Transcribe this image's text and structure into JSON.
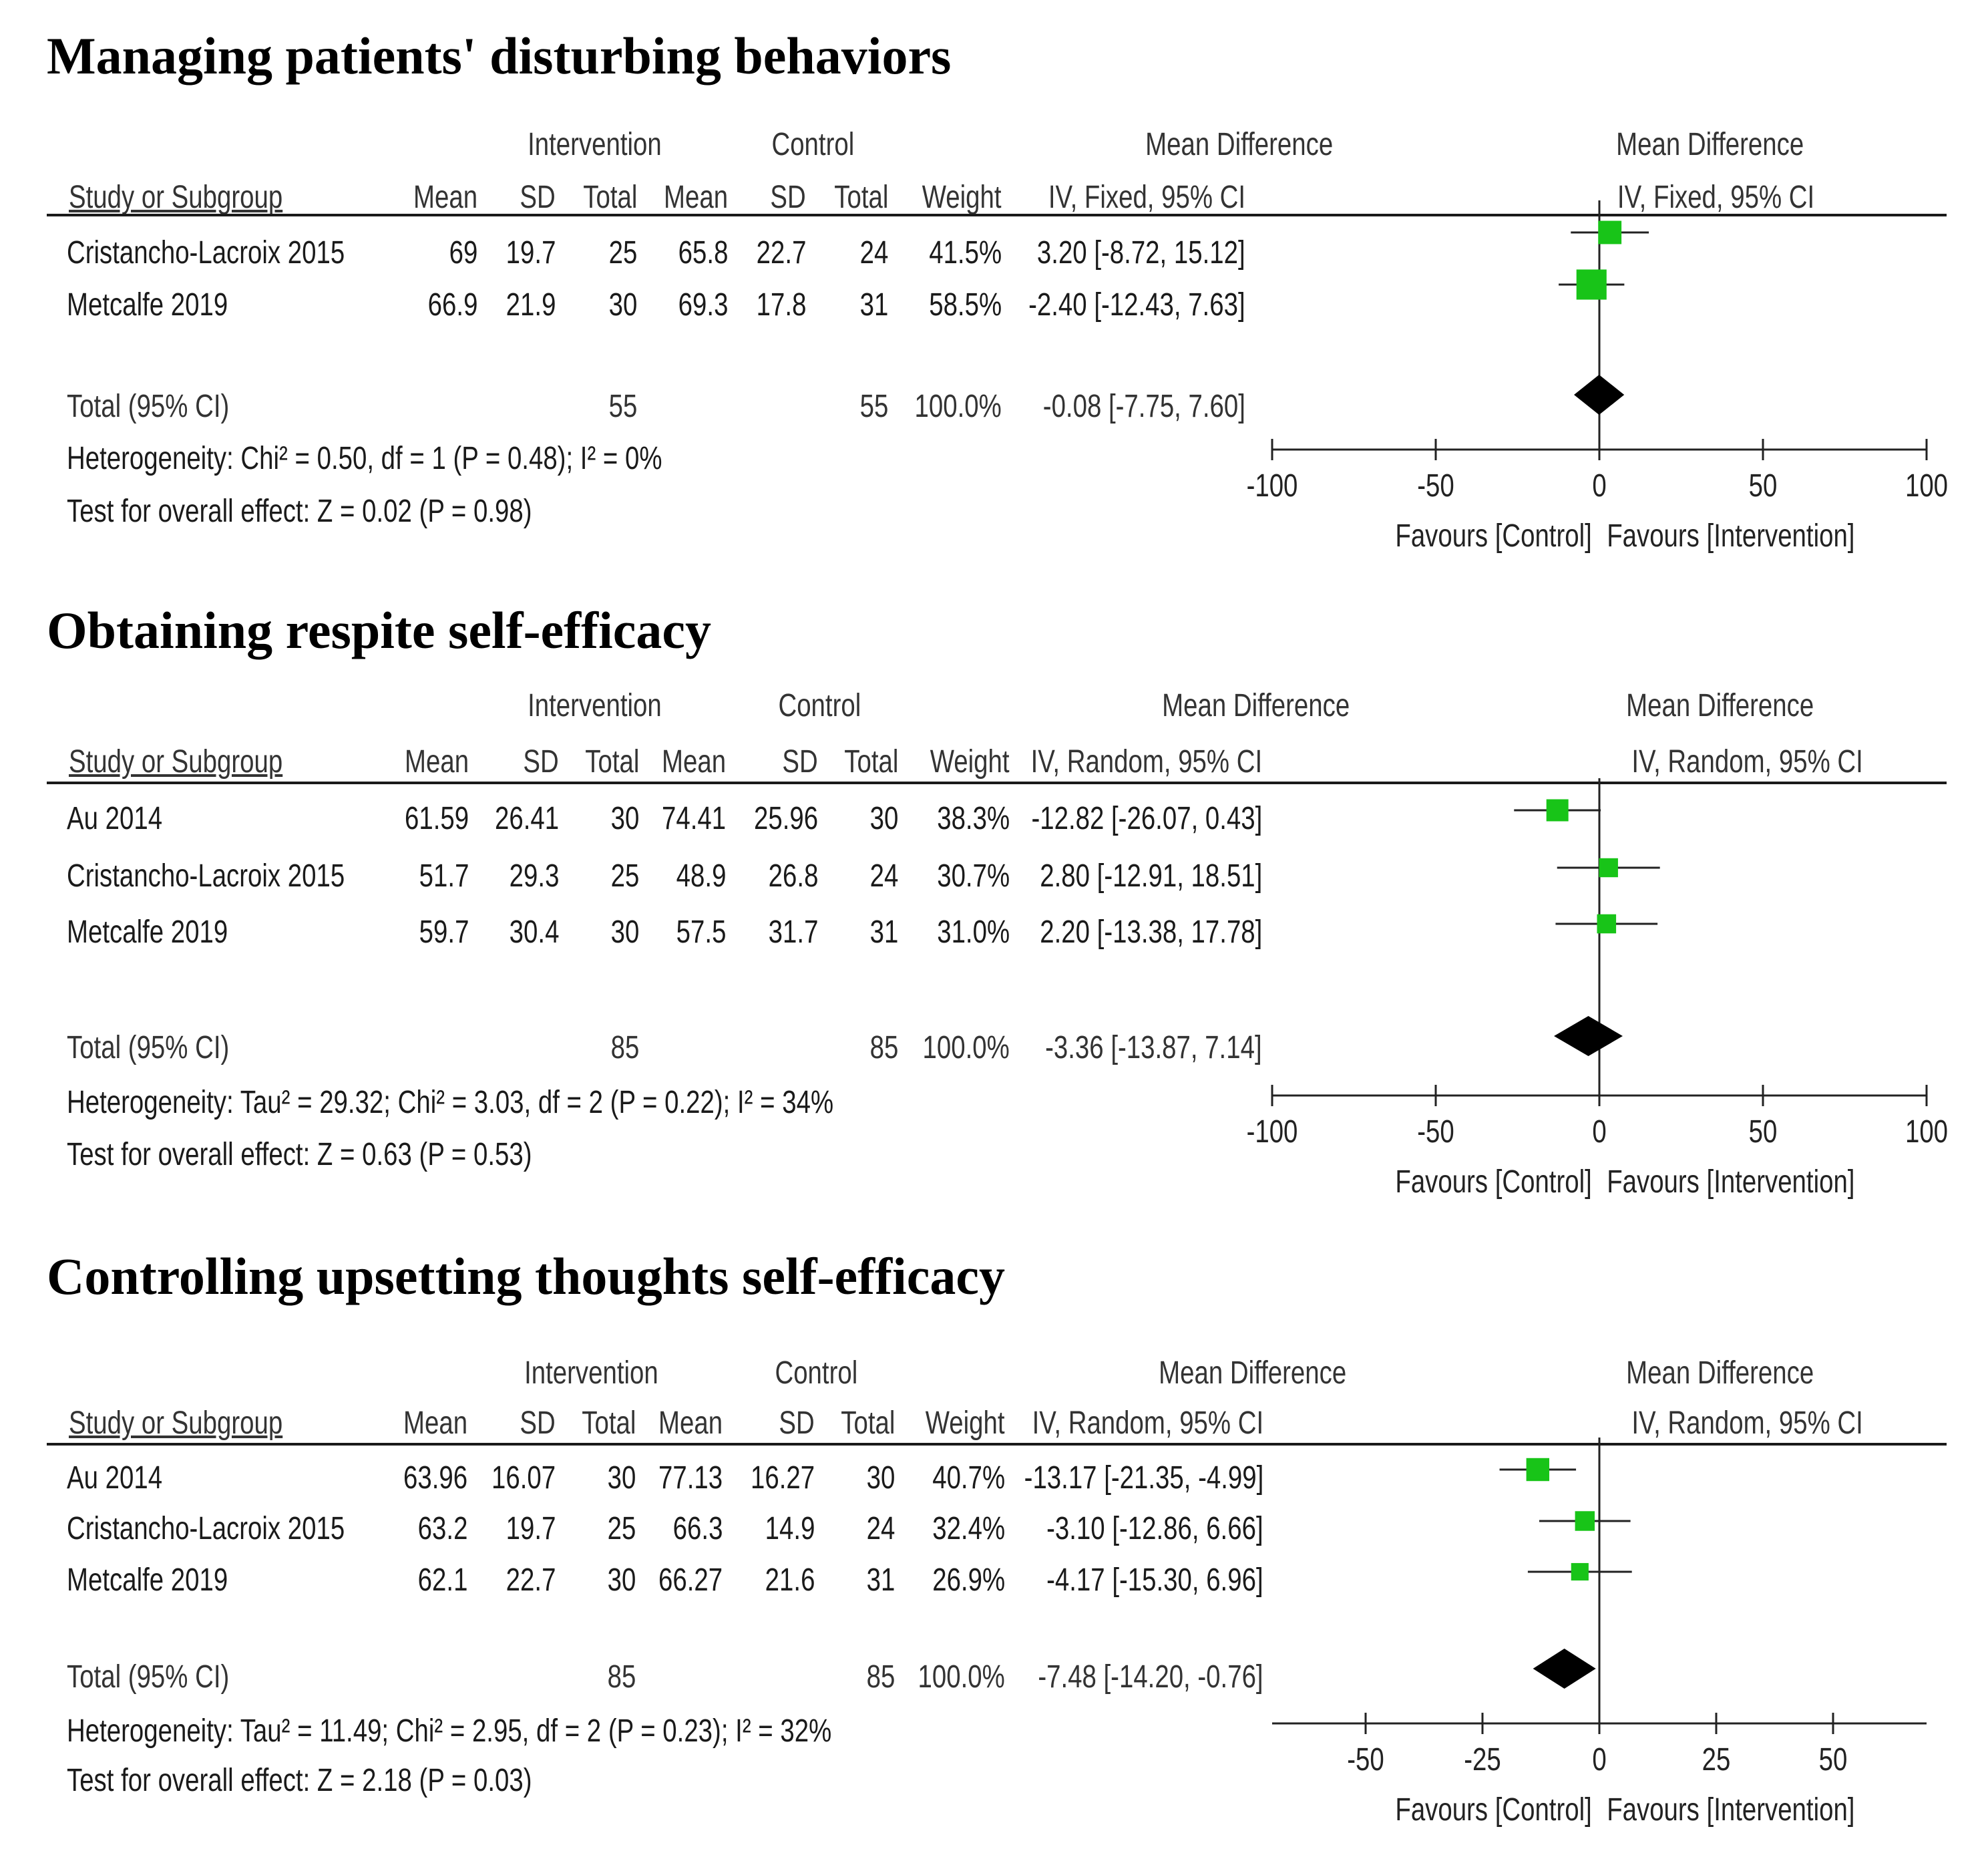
{
  "headers": {
    "intervention": "Intervention",
    "control": "Control",
    "mean_difference": "Mean Difference",
    "study": "Study or Subgroup",
    "mean": "Mean",
    "sd": "SD",
    "total": "Total",
    "weight": "Weight"
  },
  "chart_data": [
    {
      "type": "forest",
      "title": "Managing patients' disturbing behaviors",
      "method_label": "IV, Fixed, 95% CI",
      "studies": [
        {
          "name": "Cristancho-Lacroix 2015",
          "int_mean": "69",
          "int_sd": "19.7",
          "int_total": "25",
          "ctl_mean": "65.8",
          "ctl_sd": "22.7",
          "ctl_total": "24",
          "weight": "41.5%",
          "ci_text": "3.20 [-8.72, 15.12]",
          "md": 3.2,
          "lower": -8.72,
          "upper": 15.12,
          "weight_pct": 41.5
        },
        {
          "name": "Metcalfe 2019",
          "int_mean": "66.9",
          "int_sd": "21.9",
          "int_total": "30",
          "ctl_mean": "69.3",
          "ctl_sd": "17.8",
          "ctl_total": "31",
          "weight": "58.5%",
          "ci_text": "-2.40 [-12.43, 7.63]",
          "md": -2.4,
          "lower": -12.43,
          "upper": 7.63,
          "weight_pct": 58.5
        }
      ],
      "total": {
        "label": "Total (95% CI)",
        "int_total": "55",
        "ctl_total": "55",
        "weight": "100.0%",
        "ci_text": "-0.08 [-7.75, 7.60]",
        "md": -0.08,
        "lower": -7.75,
        "upper": 7.6
      },
      "heterogeneity": "Heterogeneity: Chi² = 0.50, df = 1 (P = 0.48); I² = 0%",
      "overall_effect": "Test for overall effect: Z = 0.02 (P = 0.98)",
      "xlim": [
        -100,
        100
      ],
      "ticks": [
        -100,
        -50,
        0,
        50,
        100
      ],
      "favours_left": "Favours [Control]",
      "favours_right": "Favours [Intervention]",
      "marker_color": "#18c418"
    },
    {
      "type": "forest",
      "title": "Obtaining respite self-efficacy",
      "method_label": "IV, Random, 95% CI",
      "studies": [
        {
          "name": "Au 2014",
          "int_mean": "61.59",
          "int_sd": "26.41",
          "int_total": "30",
          "ctl_mean": "74.41",
          "ctl_sd": "25.96",
          "ctl_total": "30",
          "weight": "38.3%",
          "ci_text": "-12.82 [-26.07, 0.43]",
          "md": -12.82,
          "lower": -26.07,
          "upper": 0.43,
          "weight_pct": 38.3
        },
        {
          "name": "Cristancho-Lacroix 2015",
          "int_mean": "51.7",
          "int_sd": "29.3",
          "int_total": "25",
          "ctl_mean": "48.9",
          "ctl_sd": "26.8",
          "ctl_total": "24",
          "weight": "30.7%",
          "ci_text": "2.80 [-12.91, 18.51]",
          "md": 2.8,
          "lower": -12.91,
          "upper": 18.51,
          "weight_pct": 30.7
        },
        {
          "name": "Metcalfe 2019",
          "int_mean": "59.7",
          "int_sd": "30.4",
          "int_total": "30",
          "ctl_mean": "57.5",
          "ctl_sd": "31.7",
          "ctl_total": "31",
          "weight": "31.0%",
          "ci_text": "2.20 [-13.38, 17.78]",
          "md": 2.2,
          "lower": -13.38,
          "upper": 17.78,
          "weight_pct": 31.0
        }
      ],
      "total": {
        "label": "Total (95% CI)",
        "int_total": "85",
        "ctl_total": "85",
        "weight": "100.0%",
        "ci_text": "-3.36 [-13.87, 7.14]",
        "md": -3.36,
        "lower": -13.87,
        "upper": 7.14
      },
      "heterogeneity": "Heterogeneity: Tau² = 29.32; Chi² = 3.03, df = 2 (P = 0.22); I² = 34%",
      "overall_effect": "Test for overall effect: Z = 0.63 (P = 0.53)",
      "xlim": [
        -100,
        100
      ],
      "ticks": [
        -100,
        -50,
        0,
        50,
        100
      ],
      "favours_left": "Favours [Control]",
      "favours_right": "Favours [Intervention]",
      "marker_color": "#18c418"
    },
    {
      "type": "forest",
      "title": "Controlling upsetting thoughts self-efficacy",
      "method_label": "IV, Random, 95% CI",
      "studies": [
        {
          "name": "Au 2014",
          "int_mean": "63.96",
          "int_sd": "16.07",
          "int_total": "30",
          "ctl_mean": "77.13",
          "ctl_sd": "16.27",
          "ctl_total": "30",
          "weight": "40.7%",
          "ci_text": "-13.17 [-21.35, -4.99]",
          "md": -13.17,
          "lower": -21.35,
          "upper": -4.99,
          "weight_pct": 40.7
        },
        {
          "name": "Cristancho-Lacroix 2015",
          "int_mean": "63.2",
          "int_sd": "19.7",
          "int_total": "25",
          "ctl_mean": "66.3",
          "ctl_sd": "14.9",
          "ctl_total": "24",
          "weight": "32.4%",
          "ci_text": "-3.10 [-12.86, 6.66]",
          "md": -3.1,
          "lower": -12.86,
          "upper": 6.66,
          "weight_pct": 32.4
        },
        {
          "name": "Metcalfe 2019",
          "int_mean": "62.1",
          "int_sd": "22.7",
          "int_total": "30",
          "ctl_mean": "66.27",
          "ctl_sd": "21.6",
          "ctl_total": "31",
          "weight": "26.9%",
          "ci_text": "-4.17 [-15.30, 6.96]",
          "md": -4.17,
          "lower": -15.3,
          "upper": 6.96,
          "weight_pct": 26.9
        }
      ],
      "total": {
        "label": "Total (95% CI)",
        "int_total": "85",
        "ctl_total": "85",
        "weight": "100.0%",
        "ci_text": "-7.48 [-14.20, -0.76]",
        "md": -7.48,
        "lower": -14.2,
        "upper": -0.76
      },
      "heterogeneity": "Heterogeneity: Tau² = 11.49; Chi² = 2.95, df = 2 (P = 0.23); I² = 32%",
      "overall_effect": "Test for overall effect: Z = 2.18 (P = 0.03)",
      "xlim": [
        -70,
        70
      ],
      "ticks": [
        -50,
        -25,
        0,
        25,
        50
      ],
      "favours_left": "Favours [Control]",
      "favours_right": "Favours [Intervention]",
      "marker_color": "#18c418"
    }
  ]
}
